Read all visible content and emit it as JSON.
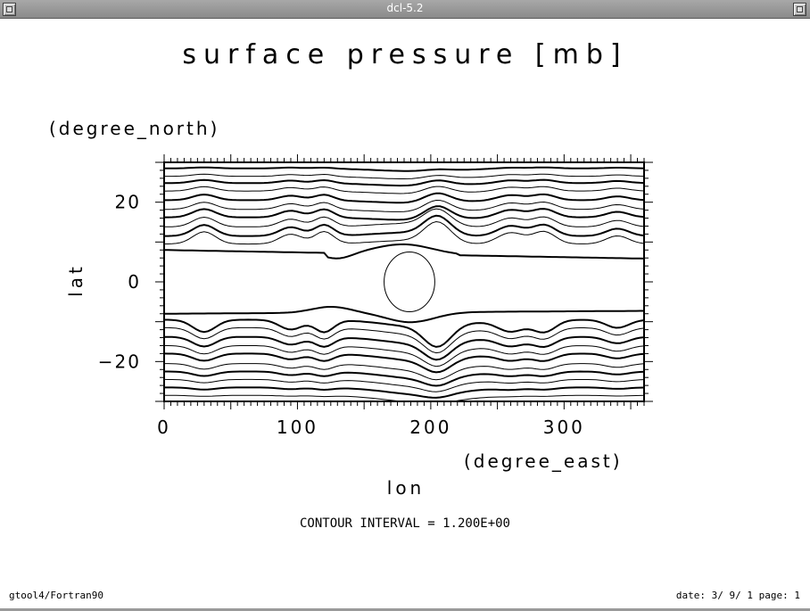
{
  "window": {
    "title": "dcl-5.2"
  },
  "plot": {
    "title": "surface pressure [mb]",
    "y_unit": "(degree_north)",
    "y_label": "lat",
    "x_unit": "(degree_east)",
    "x_label": "lon",
    "contour_note": "CONTOUR INTERVAL = 1.200E+00",
    "footer_left": "gtool4/Fortran90",
    "footer_right": "date: 3/ 9/ 1 page: 1"
  },
  "chart_data": {
    "type": "contour",
    "title": "surface pressure [mb]",
    "xlabel": "lon",
    "ylabel": "lat",
    "x_units": "(degree_east)",
    "y_units": "(degree_north)",
    "xlim": [
      0,
      360
    ],
    "ylim": [
      -30,
      30
    ],
    "x_ticks": [
      0,
      100,
      200,
      300
    ],
    "x_tick_labels": [
      "0",
      "100",
      "200",
      "300"
    ],
    "y_ticks": [
      -20,
      0,
      20
    ],
    "y_tick_labels": [
      "−20",
      "0",
      "20"
    ],
    "contour_interval": 1.2,
    "grid": false
  }
}
